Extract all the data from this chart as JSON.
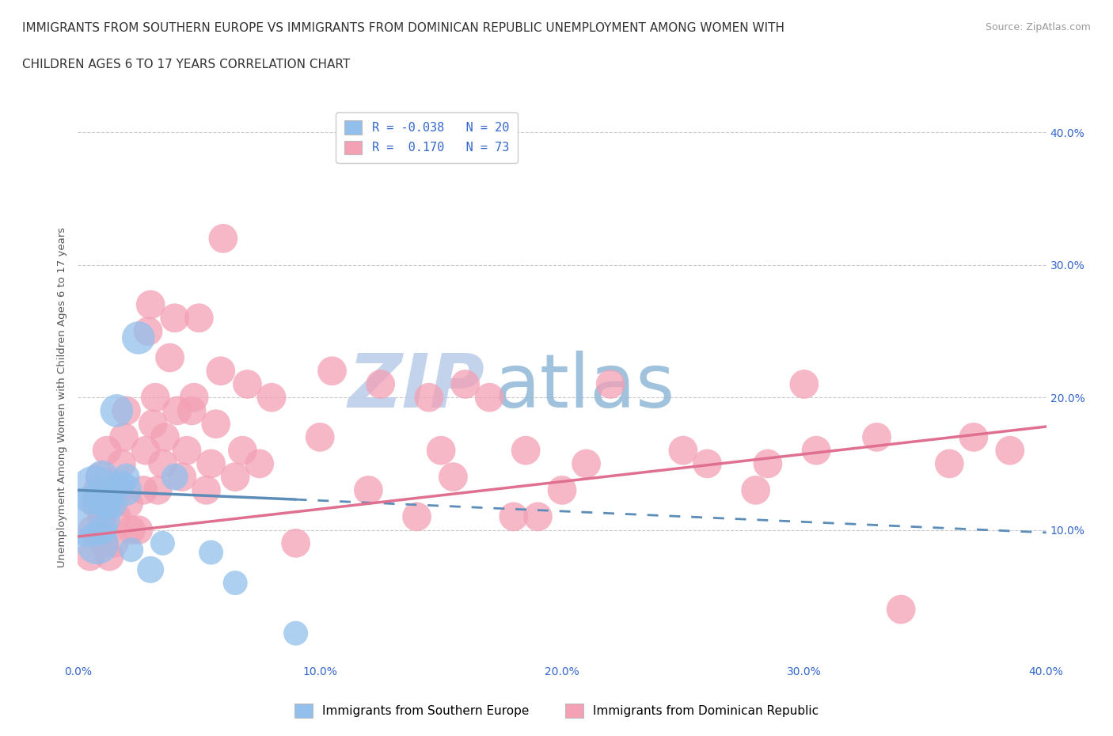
{
  "title_line1": "IMMIGRANTS FROM SOUTHERN EUROPE VS IMMIGRANTS FROM DOMINICAN REPUBLIC UNEMPLOYMENT AMONG WOMEN WITH",
  "title_line2": "CHILDREN AGES 6 TO 17 YEARS CORRELATION CHART",
  "source": "Source: ZipAtlas.com",
  "ylabel": "Unemployment Among Women with Children Ages 6 to 17 years",
  "xlabel_blue": "Immigrants from Southern Europe",
  "xlabel_pink": "Immigrants from Dominican Republic",
  "xlim": [
    0.0,
    0.4
  ],
  "ylim": [
    0.0,
    0.4
  ],
  "xticks": [
    0.0,
    0.1,
    0.2,
    0.3,
    0.4
  ],
  "yticks": [
    0.1,
    0.2,
    0.3,
    0.4
  ],
  "ytick_labels_right": [
    "10.0%",
    "20.0%",
    "30.0%",
    "40.0%"
  ],
  "xtick_labels": [
    "0.0%",
    "10.0%",
    "20.0%",
    "30.0%",
    "40.0%"
  ],
  "R_blue": -0.038,
  "N_blue": 20,
  "R_pink": 0.17,
  "N_pink": 73,
  "color_blue": "#92BFEC",
  "color_pink": "#F4A0B5",
  "line_blue_color": "#5B8DB8",
  "line_pink_color": "#E07090",
  "watermark_zip": "ZIP",
  "watermark_atlas": "atlas",
  "watermark_color_zip": "#B8CCE8",
  "watermark_color_atlas": "#90B8D8",
  "title_fontsize": 11,
  "blue_line_x0": 0.0,
  "blue_line_y0": 0.13,
  "blue_line_x1": 0.09,
  "blue_line_y1": 0.123,
  "blue_line_x2": 0.4,
  "blue_line_y2": 0.098,
  "pink_line_x0": 0.0,
  "pink_line_y0": 0.095,
  "pink_line_x1": 0.4,
  "pink_line_y1": 0.178,
  "blue_scatter_x": [
    0.005,
    0.007,
    0.008,
    0.01,
    0.01,
    0.01,
    0.012,
    0.014,
    0.016,
    0.018,
    0.02,
    0.02,
    0.022,
    0.025,
    0.03,
    0.035,
    0.04,
    0.055,
    0.065,
    0.09
  ],
  "blue_scatter_y": [
    0.11,
    0.13,
    0.09,
    0.125,
    0.14,
    0.1,
    0.12,
    0.12,
    0.19,
    0.135,
    0.13,
    0.14,
    0.085,
    0.245,
    0.07,
    0.09,
    0.14,
    0.083,
    0.06,
    0.022
  ],
  "blue_scatter_size": [
    300,
    200,
    150,
    120,
    90,
    70,
    80,
    80,
    90,
    60,
    80,
    60,
    50,
    90,
    60,
    50,
    60,
    50,
    50,
    50
  ],
  "pink_scatter_x": [
    0.005,
    0.006,
    0.007,
    0.008,
    0.009,
    0.01,
    0.011,
    0.012,
    0.013,
    0.015,
    0.016,
    0.017,
    0.018,
    0.019,
    0.02,
    0.021,
    0.022,
    0.025,
    0.027,
    0.028,
    0.029,
    0.03,
    0.031,
    0.032,
    0.033,
    0.035,
    0.036,
    0.038,
    0.04,
    0.041,
    0.043,
    0.045,
    0.047,
    0.048,
    0.05,
    0.053,
    0.055,
    0.057,
    0.059,
    0.06,
    0.065,
    0.068,
    0.07,
    0.075,
    0.08,
    0.09,
    0.1,
    0.105,
    0.12,
    0.125,
    0.14,
    0.145,
    0.15,
    0.155,
    0.16,
    0.17,
    0.18,
    0.185,
    0.19,
    0.2,
    0.21,
    0.22,
    0.25,
    0.26,
    0.28,
    0.285,
    0.3,
    0.305,
    0.33,
    0.34,
    0.36,
    0.37,
    0.385
  ],
  "pink_scatter_y": [
    0.08,
    0.1,
    0.12,
    0.13,
    0.14,
    0.11,
    0.09,
    0.16,
    0.08,
    0.09,
    0.11,
    0.13,
    0.15,
    0.17,
    0.19,
    0.12,
    0.1,
    0.1,
    0.13,
    0.16,
    0.25,
    0.27,
    0.18,
    0.2,
    0.13,
    0.15,
    0.17,
    0.23,
    0.26,
    0.19,
    0.14,
    0.16,
    0.19,
    0.2,
    0.26,
    0.13,
    0.15,
    0.18,
    0.22,
    0.32,
    0.14,
    0.16,
    0.21,
    0.15,
    0.2,
    0.09,
    0.17,
    0.22,
    0.13,
    0.21,
    0.11,
    0.2,
    0.16,
    0.14,
    0.21,
    0.2,
    0.11,
    0.16,
    0.11,
    0.13,
    0.15,
    0.21,
    0.16,
    0.15,
    0.13,
    0.15,
    0.21,
    0.16,
    0.17,
    0.04,
    0.15,
    0.17,
    0.16
  ],
  "pink_scatter_size": [
    70,
    70,
    70,
    70,
    70,
    70,
    70,
    70,
    70,
    70,
    70,
    70,
    70,
    70,
    70,
    70,
    70,
    70,
    70,
    70,
    70,
    70,
    70,
    70,
    70,
    70,
    70,
    70,
    70,
    70,
    70,
    70,
    70,
    70,
    70,
    70,
    70,
    70,
    70,
    70,
    70,
    70,
    70,
    70,
    70,
    70,
    70,
    70,
    70,
    70,
    70,
    70,
    70,
    70,
    70,
    70,
    70,
    70,
    70,
    70,
    70,
    70,
    70,
    70,
    70,
    70,
    70,
    70,
    70,
    70,
    70,
    70,
    70
  ]
}
